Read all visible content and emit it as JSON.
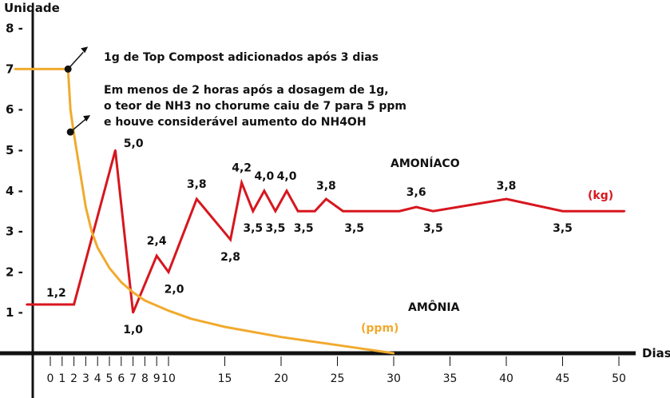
{
  "chart_data": {
    "type": "line",
    "ylabel": "Unidade",
    "xlabel": "Dias",
    "xlim": [
      0,
      50
    ],
    "ylim": [
      0,
      8
    ],
    "y_ticks": [
      "1 -",
      "2 -",
      "3 -",
      "4 -",
      "5 -",
      "6 -",
      "7",
      "8 -"
    ],
    "x_ticks_small": [
      "0",
      "1",
      "2",
      "3",
      "4",
      "5",
      "6",
      "7",
      "8",
      "9",
      "10"
    ],
    "x_ticks_large": [
      "15",
      "20",
      "25",
      "30",
      "35",
      "40",
      "45",
      "50"
    ],
    "series": [
      {
        "name": "AMONÍACO",
        "unit": "(kg)",
        "color": "#d7161e",
        "x": [
          -2,
          2,
          5.5,
          7,
          9,
          10,
          12.5,
          15.5,
          16.5,
          17.5,
          18.5,
          19.5,
          20.5,
          21.5,
          23,
          24,
          25.5,
          30.5,
          32,
          33.5,
          40,
          45,
          50.5
        ],
        "values": [
          1.2,
          1.2,
          5.0,
          1.0,
          2.4,
          2.0,
          3.8,
          2.8,
          4.2,
          3.5,
          4.0,
          3.5,
          4.0,
          3.5,
          3.5,
          3.8,
          3.5,
          3.5,
          3.6,
          3.5,
          3.8,
          3.5,
          3.5
        ],
        "data_labels": [
          {
            "text": "1,2",
            "x": 0.5,
            "y": 1.2
          },
          {
            "text": "5,0",
            "x": 6.5,
            "y": 5.0
          },
          {
            "text": "1,0",
            "x": 7,
            "y": 1.0
          },
          {
            "text": "2,4",
            "x": 9,
            "y": 2.4
          },
          {
            "text": "2,0",
            "x": 10.5,
            "y": 2.0
          },
          {
            "text": "3,8",
            "x": 12.5,
            "y": 3.8
          },
          {
            "text": "2,8",
            "x": 15.5,
            "y": 2.8
          },
          {
            "text": "4,2",
            "x": 16.5,
            "y": 4.2
          },
          {
            "text": "3,5",
            "x": 17.5,
            "y": 3.5
          },
          {
            "text": "4,0",
            "x": 18.5,
            "y": 4.0
          },
          {
            "text": "3,5",
            "x": 19.5,
            "y": 3.5
          },
          {
            "text": "4,0",
            "x": 20.5,
            "y": 4.0
          },
          {
            "text": "3,5",
            "x": 22,
            "y": 3.5
          },
          {
            "text": "3,8",
            "x": 24,
            "y": 3.8
          },
          {
            "text": "3,5",
            "x": 26.5,
            "y": 3.5
          },
          {
            "text": "3,6",
            "x": 32,
            "y": 3.6
          },
          {
            "text": "3,5",
            "x": 33.5,
            "y": 3.5
          },
          {
            "text": "3,8",
            "x": 40,
            "y": 3.8
          },
          {
            "text": "3,5",
            "x": 45,
            "y": 3.5
          }
        ]
      },
      {
        "name": "AMÔNIA",
        "unit": "(ppm)",
        "color": "#f1aa2e",
        "x": [
          -3,
          1.5,
          1.7,
          2.0,
          2.5,
          3,
          3.5,
          4,
          5,
          6,
          7,
          8,
          10,
          12,
          15,
          20,
          25,
          30
        ],
        "values": [
          7.0,
          7.0,
          6.0,
          5.4,
          4.5,
          3.6,
          3.0,
          2.6,
          2.1,
          1.75,
          1.5,
          1.3,
          1.05,
          0.85,
          0.65,
          0.4,
          0.2,
          0.0
        ]
      }
    ],
    "annotations": [
      {
        "prefix": "1g de ",
        "strong": "Top Compost",
        "suffix": " adicionados após 3 dias",
        "x": 1.5,
        "y": 7.0
      },
      {
        "lines": [
          "Em menos de 2 horas após a dosagem de 1g,",
          "o teor de NH3 no chorume caiu de 7 para 5 ppm",
          "e houve considerável aumento do NH4OH"
        ],
        "x": 1.7,
        "y": 5.45
      }
    ],
    "grid": false,
    "legend": "inline labels"
  }
}
